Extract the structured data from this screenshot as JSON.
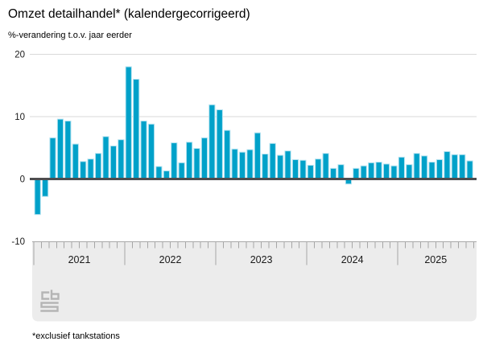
{
  "header": {
    "title": "Omzet detailhandel* (kalendergecorrigeerd)",
    "subtitle": "%-verandering t.o.v. jaar eerder"
  },
  "footnote": "*exclusief tankstations",
  "branding": {
    "logo_icon": "cbs-logo"
  },
  "colors": {
    "bar": "#00a1c9",
    "bar_outline": "#b3e2f0",
    "zero_line": "#4d4d4f",
    "gridline": "#d9d9d9",
    "axis_panel": "#ececec",
    "axis_line": "#a8a8a8",
    "tick": "#a6a6a6",
    "text": "#1a1a1a"
  },
  "chart_data": {
    "type": "bar",
    "title": "Omzet detailhandel* (kalendergecorrigeerd)",
    "subtitle": "%-verandering t.o.v. jaar eerder",
    "unit": "%",
    "ylim": [
      -10,
      20
    ],
    "yticks": [
      20,
      10,
      0,
      -10
    ],
    "grid": true,
    "legend": null,
    "x_axis_years": [
      "2021",
      "2022",
      "2023",
      "2024",
      "2025"
    ],
    "months_per_year": [
      12,
      12,
      12,
      12,
      10
    ],
    "x": [
      "2021-01",
      "2021-02",
      "2021-03",
      "2021-04",
      "2021-05",
      "2021-06",
      "2021-07",
      "2021-08",
      "2021-09",
      "2021-10",
      "2021-11",
      "2021-12",
      "2022-01",
      "2022-02",
      "2022-03",
      "2022-04",
      "2022-05",
      "2022-06",
      "2022-07",
      "2022-08",
      "2022-09",
      "2022-10",
      "2022-11",
      "2022-12",
      "2023-01",
      "2023-02",
      "2023-03",
      "2023-04",
      "2023-05",
      "2023-06",
      "2023-07",
      "2023-08",
      "2023-09",
      "2023-10",
      "2023-11",
      "2023-12",
      "2024-01",
      "2024-02",
      "2024-03",
      "2024-04",
      "2024-05",
      "2024-06",
      "2024-07",
      "2024-08",
      "2024-09",
      "2024-10",
      "2024-11",
      "2024-12",
      "2025-01",
      "2025-02",
      "2025-03",
      "2025-04",
      "2025-05",
      "2025-06",
      "2025-07",
      "2025-08",
      "2025-09",
      "2025-10"
    ],
    "values": [
      -5.7,
      -2.8,
      6.6,
      9.6,
      9.3,
      5.6,
      2.8,
      3.2,
      4.1,
      6.8,
      5.3,
      6.3,
      18.0,
      16.0,
      9.3,
      8.8,
      2.0,
      1.3,
      5.8,
      2.6,
      5.9,
      4.9,
      6.6,
      11.9,
      11.1,
      7.8,
      4.8,
      4.3,
      4.7,
      7.4,
      4.0,
      5.7,
      3.8,
      4.5,
      3.1,
      3.0,
      2.2,
      3.2,
      4.1,
      1.7,
      2.3,
      -0.8,
      1.7,
      2.1,
      2.6,
      2.7,
      2.4,
      2.1,
      3.5,
      2.3,
      4.1,
      3.7,
      2.7,
      3.1,
      4.4,
      3.9,
      3.9,
      2.9
    ]
  }
}
